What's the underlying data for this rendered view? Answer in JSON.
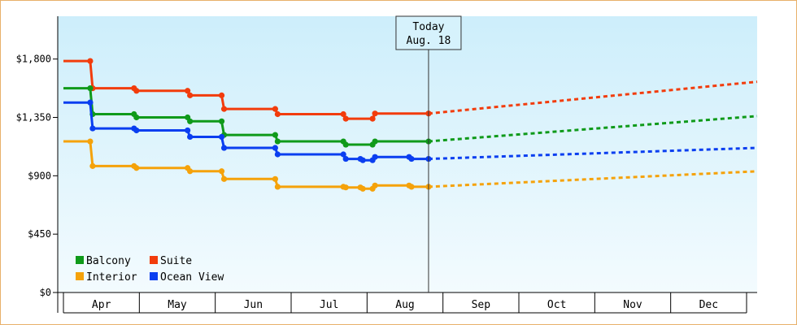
{
  "chart_data": {
    "type": "line",
    "title": "",
    "xlabel": "",
    "ylabel": "",
    "x_axis": {
      "months": [
        "Apr",
        "May",
        "Jun",
        "Jul",
        "Aug",
        "Sep",
        "Oct",
        "Nov",
        "Dec"
      ],
      "start": "Mar 21",
      "end": "Dec 31"
    },
    "y_axis": {
      "ticks": [
        0,
        450,
        900,
        1350,
        1800
      ],
      "tick_labels": [
        "$0",
        "$450",
        "$900",
        "$1,350",
        "$1,800"
      ],
      "ylim": [
        0,
        2130
      ]
    },
    "today": {
      "line1": "Today",
      "line2": "Aug. 18",
      "date": "Aug 18"
    },
    "background": {
      "top": "#cdeefb",
      "bottom": "#f3fbfe"
    },
    "legend_placement": "bottom-left",
    "series": [
      {
        "name": "Suite",
        "color": "#f23c0c",
        "history": [
          [
            "Mar 21",
            1785
          ],
          [
            "Apr 1",
            1785
          ],
          [
            "Apr 2",
            1575
          ],
          [
            "Apr 19",
            1575
          ],
          [
            "Apr 20",
            1555
          ],
          [
            "May 11",
            1555
          ],
          [
            "May 12",
            1520
          ],
          [
            "May 25",
            1520
          ],
          [
            "May 26",
            1415
          ],
          [
            "Jun 16",
            1415
          ],
          [
            "Jun 17",
            1375
          ],
          [
            "Jul 14",
            1375
          ],
          [
            "Jul 15",
            1340
          ],
          [
            "Jul 26",
            1340
          ],
          [
            "Jul 27",
            1380
          ],
          [
            "Aug 18",
            1380
          ]
        ],
        "forecast": [
          [
            "Aug 18",
            1380
          ],
          [
            "Dec 31",
            1625
          ]
        ]
      },
      {
        "name": "Balcony",
        "color": "#0f9a1a",
        "history": [
          [
            "Mar 21",
            1575
          ],
          [
            "Apr 1",
            1575
          ],
          [
            "Apr 2",
            1375
          ],
          [
            "Apr 19",
            1375
          ],
          [
            "Apr 20",
            1350
          ],
          [
            "May 11",
            1350
          ],
          [
            "May 12",
            1320
          ],
          [
            "May 25",
            1320
          ],
          [
            "May 26",
            1215
          ],
          [
            "Jun 16",
            1215
          ],
          [
            "Jun 17",
            1165
          ],
          [
            "Jul 14",
            1165
          ],
          [
            "Jul 15",
            1140
          ],
          [
            "Jul 26",
            1140
          ],
          [
            "Jul 27",
            1165
          ],
          [
            "Aug 18",
            1165
          ]
        ],
        "forecast": [
          [
            "Aug 18",
            1165
          ],
          [
            "Dec 31",
            1360
          ]
        ]
      },
      {
        "name": "Ocean View",
        "color": "#0a3ef0",
        "history": [
          [
            "Mar 21",
            1465
          ],
          [
            "Apr 1",
            1465
          ],
          [
            "Apr 2",
            1265
          ],
          [
            "Apr 19",
            1265
          ],
          [
            "Apr 20",
            1250
          ],
          [
            "May 11",
            1250
          ],
          [
            "May 12",
            1200
          ],
          [
            "May 25",
            1200
          ],
          [
            "May 26",
            1115
          ],
          [
            "Jun 16",
            1115
          ],
          [
            "Jun 17",
            1065
          ],
          [
            "Jul 14",
            1065
          ],
          [
            "Jul 15",
            1030
          ],
          [
            "Jul 21",
            1030
          ],
          [
            "Jul 22",
            1020
          ],
          [
            "Jul 26",
            1020
          ],
          [
            "Jul 27",
            1045
          ],
          [
            "Aug 10",
            1045
          ],
          [
            "Aug 11",
            1030
          ],
          [
            "Aug 18",
            1030
          ]
        ],
        "forecast": [
          [
            "Aug 18",
            1030
          ],
          [
            "Dec 31",
            1115
          ]
        ]
      },
      {
        "name": "Interior",
        "color": "#f5a20a",
        "history": [
          [
            "Mar 21",
            1165
          ],
          [
            "Apr 1",
            1165
          ],
          [
            "Apr 2",
            975
          ],
          [
            "Apr 19",
            975
          ],
          [
            "Apr 20",
            960
          ],
          [
            "May 11",
            960
          ],
          [
            "May 12",
            935
          ],
          [
            "May 25",
            935
          ],
          [
            "May 26",
            875
          ],
          [
            "Jun 16",
            875
          ],
          [
            "Jun 17",
            815
          ],
          [
            "Jul 14",
            815
          ],
          [
            "Jul 15",
            810
          ],
          [
            "Jul 21",
            810
          ],
          [
            "Jul 22",
            800
          ],
          [
            "Jul 26",
            800
          ],
          [
            "Jul 27",
            825
          ],
          [
            "Aug 10",
            825
          ],
          [
            "Aug 11",
            815
          ],
          [
            "Aug 18",
            815
          ]
        ],
        "forecast": [
          [
            "Aug 18",
            815
          ],
          [
            "Dec 31",
            935
          ]
        ]
      }
    ],
    "legend": [
      {
        "name": "Balcony",
        "color": "#0f9a1a"
      },
      {
        "name": "Suite",
        "color": "#f23c0c"
      },
      {
        "name": "Interior",
        "color": "#f5a20a"
      },
      {
        "name": "Ocean View",
        "color": "#0a3ef0"
      }
    ]
  }
}
